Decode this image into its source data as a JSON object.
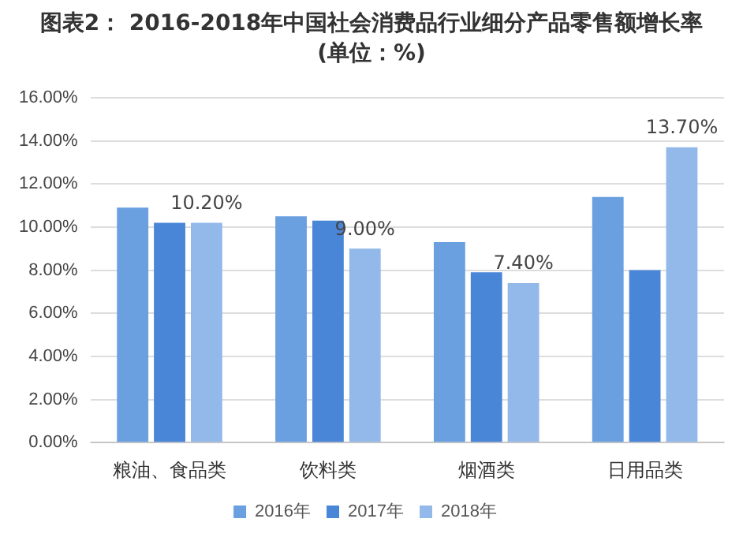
{
  "chart_data": {
    "type": "bar",
    "title": "图表2： 2016-2018年中国社会消费品行业细分产品零售额增长率(单位：%)",
    "categories": [
      "粮油、食品类",
      "饮料类",
      "烟酒类",
      "日用品类"
    ],
    "series": [
      {
        "name": "2016年",
        "color": "#6a9fe0",
        "values": [
          10.9,
          10.5,
          9.3,
          11.4
        ]
      },
      {
        "name": "2017年",
        "color": "#4a86d8",
        "values": [
          10.2,
          10.3,
          7.9,
          8.0
        ]
      },
      {
        "name": "2018年",
        "color": "#92b9ea",
        "values": [
          10.2,
          9.0,
          7.4,
          13.7
        ],
        "value_labels": [
          "10.20%",
          "9.00%",
          "7.40%",
          "13.70%"
        ]
      }
    ],
    "ylim": [
      0,
      16
    ],
    "yticks": [
      {
        "value": 0,
        "label": "0.00%"
      },
      {
        "value": 2,
        "label": "2.00%"
      },
      {
        "value": 4,
        "label": "4.00%"
      },
      {
        "value": 6,
        "label": "6.00%"
      },
      {
        "value": 8,
        "label": "8.00%"
      },
      {
        "value": 10,
        "label": "10.00%"
      },
      {
        "value": 12,
        "label": "12.00%"
      },
      {
        "value": 14,
        "label": "14.00%"
      },
      {
        "value": 16,
        "label": "16.00%"
      }
    ],
    "grid": "y",
    "legend": "bottom"
  }
}
